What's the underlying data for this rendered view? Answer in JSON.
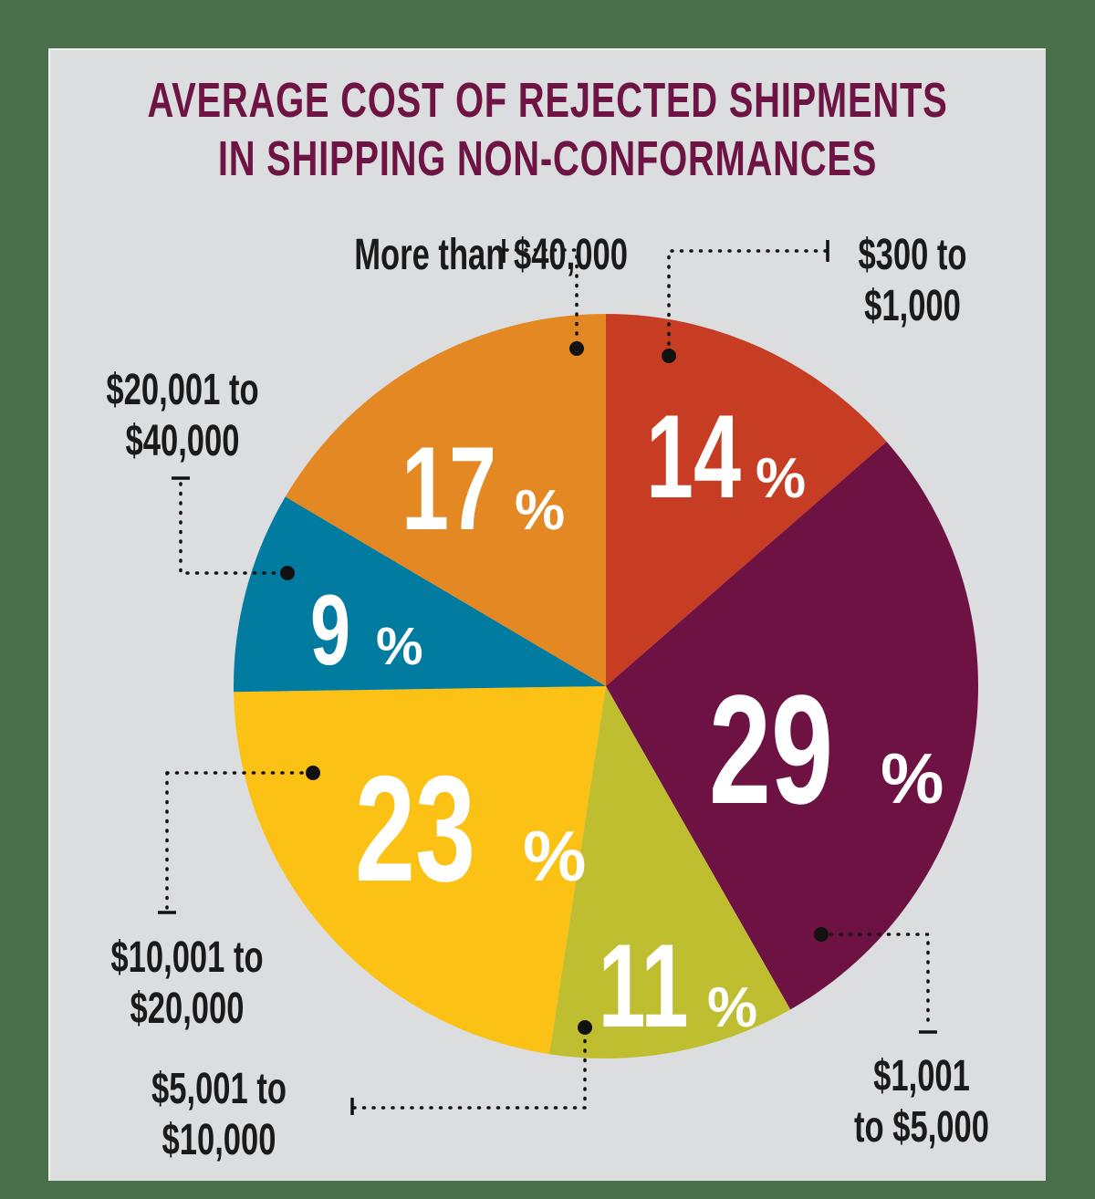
{
  "title": {
    "line1": "AVERAGE COST OF REJECTED SHIPMENTS",
    "line2": "IN SHIPPING NON-CONFORMANCES"
  },
  "colors": {
    "background": "#4a6f4b",
    "panel": "#dcdddf",
    "title": "#6e1444",
    "leader": "#111111"
  },
  "slices": [
    {
      "label": "$300 to $1,000",
      "label_lines": [
        "$300 to",
        "$1,000"
      ],
      "value": 14,
      "display": "14",
      "color": "#c73d23"
    },
    {
      "label": "$1,001 to $5,000",
      "label_lines": [
        "$1,001",
        "to $5,000"
      ],
      "value": 29,
      "display": "29",
      "color": "#6e1244"
    },
    {
      "label": "$5,001 to $10,000",
      "label_lines": [
        "$5,001 to",
        "$10,000"
      ],
      "value": 11,
      "display": "11",
      "color": "#bfbd30"
    },
    {
      "label": "$10,001 to $20,000",
      "label_lines": [
        "$10,001 to",
        "$20,000"
      ],
      "value": 23,
      "display": "23",
      "color": "#fbc114"
    },
    {
      "label": "$20,001 to $40,000",
      "label_lines": [
        "$20,001 to",
        "$40,000"
      ],
      "value": 9,
      "display": "9",
      "color": "#017ba0"
    },
    {
      "label": "More than $40,000",
      "label_lines": [
        "More than $40,000"
      ],
      "value": 17,
      "display": "17",
      "color": "#e38823"
    }
  ],
  "percent_symbol": "%",
  "chart_data": {
    "type": "pie",
    "title": "AVERAGE COST OF REJECTED SHIPMENTS IN SHIPPING NON-CONFORMANCES",
    "categories": [
      "$300 to $1,000",
      "$1,001 to $5,000",
      "$5,001 to $10,000",
      "$10,001 to $20,000",
      "$20,001 to $40,000",
      "More than $40,000"
    ],
    "values": [
      14,
      29,
      11,
      23,
      9,
      17
    ],
    "unit": "%",
    "start_angle": "12 o'clock",
    "direction": "clockwise",
    "legend": "leader-line callouts"
  }
}
